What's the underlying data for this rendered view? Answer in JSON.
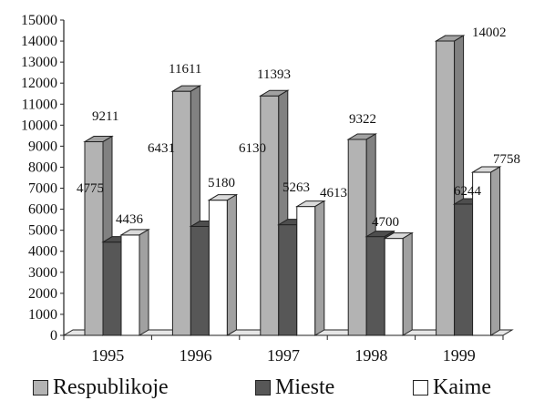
{
  "chart_data": {
    "type": "bar",
    "categories": [
      "1995",
      "1996",
      "1997",
      "1998",
      "1999"
    ],
    "series": [
      {
        "name": "Respublikoje",
        "values": [
          9211,
          11611,
          11393,
          9322,
          14002
        ],
        "color": "#b3b3b3"
      },
      {
        "name": "Mieste",
        "values": [
          4436,
          5180,
          5263,
          4700,
          6244
        ],
        "color": "#575757"
      },
      {
        "name": "Kaime",
        "values": [
          4775,
          6431,
          6130,
          4613,
          7758
        ],
        "color": "#ffffff"
      }
    ],
    "data_labels": {
      "Respublikoje": [
        "9211",
        "11611",
        "11393",
        "9322",
        "14002"
      ],
      "Mieste": [
        "4436",
        "5180",
        "5263",
        "4700",
        "6244"
      ],
      "Kaime": [
        "4775",
        "6431",
        "6130",
        "4613",
        "7758"
      ]
    },
    "yticks": [
      "0",
      "1000",
      "2000",
      "3000",
      "4000",
      "5000",
      "6000",
      "7000",
      "8000",
      "9000",
      "10000",
      "11000",
      "12000",
      "13000",
      "14000",
      "15000"
    ],
    "ylim": [
      0,
      15000
    ],
    "style": "3d",
    "grid": false,
    "legend_position": "bottom"
  }
}
